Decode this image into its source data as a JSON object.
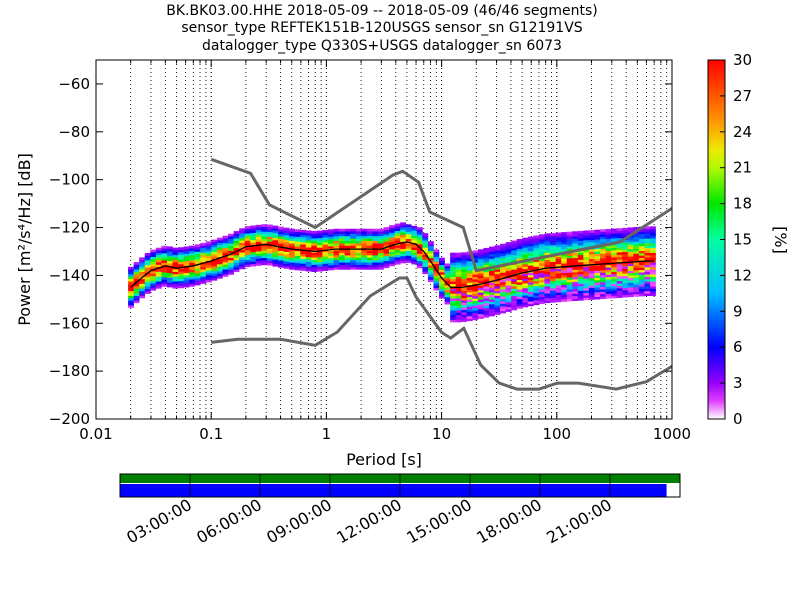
{
  "chart_data": {
    "type": "heatmap",
    "title_lines": [
      "BK.BK03.00.HHE   2018-05-09 -- 2018-05-09  (46/46 segments)",
      "sensor_type REFTEK151B-120USGS sensor_sn G12191VS",
      "datalogger_type Q330S+USGS datalogger_sn 6073"
    ],
    "xlabel": "Period [s]",
    "ylabel": "Power [m²/s⁴/Hz] [dB]",
    "x_scale": "log",
    "xlim": [
      0.01,
      1000
    ],
    "ylim": [
      -200,
      -50
    ],
    "x_tick_labels": [
      "0.01",
      "0.1",
      "1",
      "10",
      "100",
      "1000"
    ],
    "x_ticks": [
      0.01,
      0.1,
      1,
      10,
      100,
      1000
    ],
    "y_ticks": [
      -60,
      -80,
      -100,
      -120,
      -140,
      -160,
      -180,
      -200
    ],
    "grid": "dotted vertical lines",
    "colorbar": {
      "label": "[%]",
      "min": 0,
      "max": 30,
      "ticks": [
        0,
        3,
        6,
        9,
        12,
        15,
        18,
        21,
        24,
        27,
        30
      ],
      "colormap": "pqlx"
    },
    "noise_models": {
      "high": {
        "x": [
          0.1,
          0.22,
          0.32,
          0.8,
          3.8,
          4.6,
          6.3,
          7.9,
          15.4,
          20,
          354.8,
          1000
        ],
        "y": [
          -91.5,
          -97.4,
          -110.5,
          -120,
          -98,
          -96.5,
          -101,
          -113.5,
          -120,
          -138,
          -126,
          -112
        ]
      },
      "low": {
        "x": [
          0.1,
          0.17,
          0.4,
          0.8,
          1.24,
          2.4,
          4.3,
          5,
          6,
          10,
          12,
          15.6,
          21.9,
          31.6,
          45,
          70,
          101,
          154,
          328,
          600,
          1000
        ],
        "y": [
          -168,
          -166.7,
          -166.7,
          -169.2,
          -163.7,
          -148.6,
          -141.1,
          -141.1,
          -149,
          -163.8,
          -166.2,
          -162.1,
          -177.5,
          -185,
          -187.5,
          -187.5,
          -185,
          -185,
          -187.5,
          -184.4,
          -178
        ]
      }
    },
    "mode_curve": {
      "x": [
        0.02,
        0.025,
        0.03,
        0.04,
        0.05,
        0.07,
        0.1,
        0.15,
        0.2,
        0.3,
        0.5,
        0.8,
        1.2,
        2,
        3,
        4,
        5,
        6,
        7,
        8,
        10,
        12,
        15,
        20,
        30,
        50,
        80,
        150,
        300,
        600,
        700
      ],
      "y": [
        -145,
        -141,
        -138,
        -136,
        -137,
        -136,
        -134,
        -131,
        -128,
        -127,
        -129,
        -130,
        -129,
        -129,
        -129,
        -127,
        -126,
        -127,
        -130,
        -134,
        -141,
        -145,
        -145,
        -144,
        -142,
        -139,
        -137,
        -136,
        -135,
        -134,
        -134
      ]
    },
    "time_coverage": {
      "tick_labels": [
        "03:00:00",
        "06:00:00",
        "09:00:00",
        "12:00:00",
        "15:00:00",
        "18:00:00",
        "21:00:00"
      ],
      "data_available_fraction": 0.976,
      "top_bar_color": "#008000",
      "bottom_bar_color": "#0000ff"
    }
  }
}
